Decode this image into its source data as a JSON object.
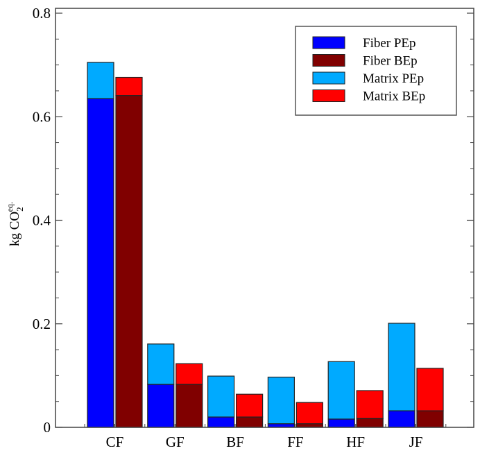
{
  "chart_data": {
    "type": "bar",
    "subtype": "grouped-stacked",
    "title": "",
    "xlabel": "",
    "ylabel": "kg CO2 eq.",
    "ylabel_parts": {
      "main": "kg CO",
      "sub": "2",
      "sup": "eq."
    },
    "ylim": [
      0,
      0.8
    ],
    "yticks": [
      "0",
      "0.2",
      "0.4",
      "0.6",
      "0.8"
    ],
    "ytick_values": [
      0,
      0.2,
      0.4,
      0.6,
      0.8
    ],
    "grid": false,
    "legend_position": "upper right",
    "categories": [
      "CF",
      "GF",
      "BF",
      "FF",
      "HF",
      "JF"
    ],
    "groups": [
      "PEp",
      "BEp"
    ],
    "series": [
      {
        "name": "Fiber PEp",
        "group": "PEp",
        "color": "#0000ff",
        "values": [
          0.635,
          0.083,
          0.02,
          0.007,
          0.016,
          0.032
        ]
      },
      {
        "name": "Matrix PEp",
        "group": "PEp",
        "color": "#00aaff",
        "values": [
          0.07,
          0.078,
          0.079,
          0.09,
          0.111,
          0.169
        ]
      },
      {
        "name": "Fiber BEp",
        "group": "BEp",
        "color": "#800000",
        "values": [
          0.641,
          0.083,
          0.02,
          0.007,
          0.017,
          0.032
        ]
      },
      {
        "name": "Matrix BEp",
        "group": "BEp",
        "color": "#ff0000",
        "values": [
          0.035,
          0.04,
          0.044,
          0.041,
          0.054,
          0.082
        ]
      }
    ],
    "totals": {
      "PEp": [
        0.705,
        0.161,
        0.099,
        0.097,
        0.127,
        0.201
      ],
      "BEp": [
        0.676,
        0.123,
        0.064,
        0.048,
        0.071,
        0.114
      ]
    }
  },
  "legend": {
    "items": [
      {
        "label": "Fiber PEp",
        "color": "#0000ff"
      },
      {
        "label": "Fiber BEp",
        "color": "#800000"
      },
      {
        "label": "Matrix PEp",
        "color": "#00aaff"
      },
      {
        "label": "Matrix BEp",
        "color": "#ff0000"
      }
    ]
  }
}
